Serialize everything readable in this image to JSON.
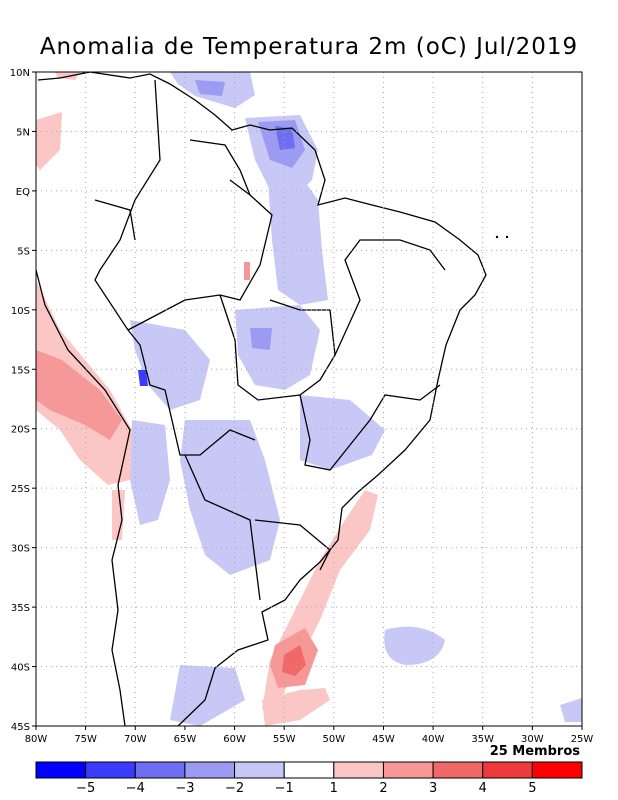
{
  "title": "Anomalia de Temperatura 2m (oC) Jul/2019",
  "footer": "25 Membros",
  "lon_labels": [
    "80W",
    "75W",
    "70W",
    "65W",
    "60W",
    "55W",
    "50W",
    "45W",
    "40W",
    "35W",
    "30W",
    "25W"
  ],
  "lat_labels": [
    "10N",
    "5N",
    "EQ",
    "5S",
    "10S",
    "15S",
    "20S",
    "25S",
    "30S",
    "35S",
    "40S",
    "45S"
  ],
  "colorbar": {
    "colors": [
      "#0000ff",
      "#3b3bff",
      "#6e6ef2",
      "#9b9bf2",
      "#c8c8f7",
      "#ffffff",
      "#fbc6c6",
      "#f79898",
      "#f06868",
      "#ee3a3a",
      "#ff0000"
    ],
    "labels": [
      "-5",
      "-4",
      "-3",
      "-2",
      "-1",
      "1",
      "2",
      "3",
      "4",
      "5"
    ]
  },
  "colors": {
    "neg1": "#c8c8f7",
    "neg2": "#9b9bf2",
    "neg3": "#6e6ef2",
    "neg4": "#3b3bff",
    "pos1": "#fbc6c6",
    "pos2": "#f79898",
    "pos3": "#f06868"
  }
}
